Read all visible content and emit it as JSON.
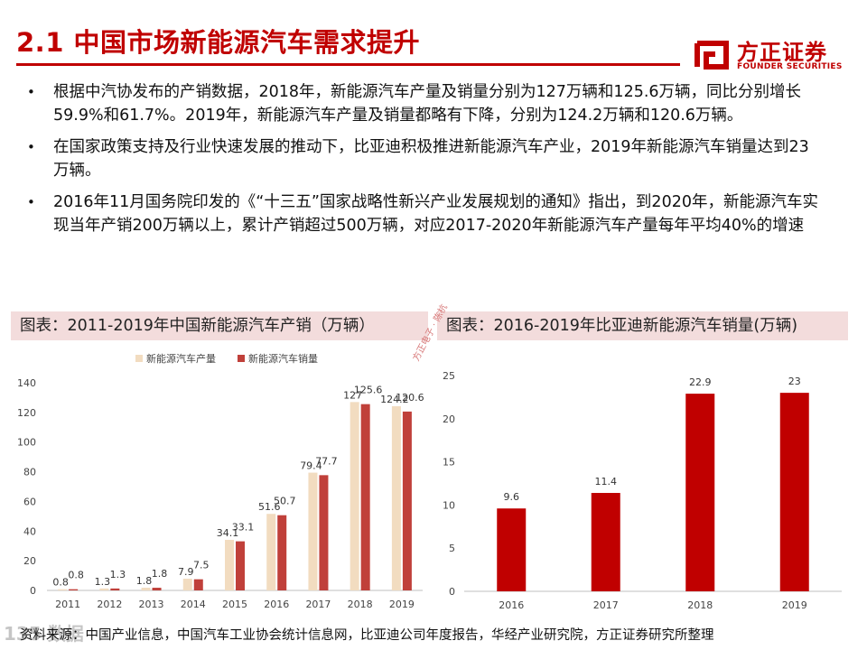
{
  "header": {
    "title": "2.1 中国市场新能源汽车需求提升",
    "logo_cn": "方正证券",
    "logo_en": "FOUNDER SECURITIES",
    "brand_color": "#c00000"
  },
  "bullets": [
    "根据中汽协发布的产销数据，2018年，新能源汽车产量及销量分别为127万辆和125.6万辆，同比分别增长59.9%和61.7%。2019年，新能源汽车产量及销量都略有下降，分别为124.2万辆和120.6万辆。",
    "在国家政策支持及行业快速发展的推动下，比亚迪积极推进新能源汽车产业，2019年新能源汽车销量达到23万辆。",
    "2016年11月国务院印发的《“十三五”国家战略性新兴产业发展规划的通知》指出，到2020年，新能源汽车实现当年产销200万辆以上，累计产销超过500万辆，对应2017-2020年新能源汽车产量每年平均40%的增速"
  ],
  "panels": {
    "left_title": "图表：2011-2019年中国新能源汽车产销（万辆）",
    "right_title": "图表：2016-2019年比亚迪新能源汽车销量(万辆)"
  },
  "stamp": "方正电子 · 陈杭",
  "source": "资料来源：中国产业信息，中国汽车工业协会统计信息网，比亚迪公司年度报告，华经产业研究院，方正证券研究所整理",
  "watermark": "135 数据",
  "chart_data": [
    {
      "type": "bar",
      "categories": [
        "2011",
        "2012",
        "2013",
        "2014",
        "2015",
        "2016",
        "2017",
        "2018",
        "2019"
      ],
      "series": [
        {
          "name": "新能源汽车产量",
          "values": [
            0.8,
            1.3,
            1.8,
            7.9,
            34.1,
            51.6,
            79.4,
            127,
            124.2
          ],
          "color": "#f2dcc0"
        },
        {
          "name": "新能源汽车销量",
          "values": [
            0.8,
            1.3,
            1.8,
            7.5,
            33.1,
            50.7,
            77.7,
            125.6,
            120.6
          ],
          "color": "#c0403a"
        }
      ],
      "yticks": [
        "0",
        "20",
        "40",
        "60",
        "80",
        "100",
        "120",
        "140"
      ],
      "ylim": [
        0,
        140
      ],
      "legend_position": "top",
      "grid": false
    },
    {
      "type": "bar",
      "categories": [
        "2016",
        "2017",
        "2018",
        "2019"
      ],
      "values": [
        9.6,
        11.4,
        22.9,
        23
      ],
      "color": "#c00000",
      "yticks": [
        "0",
        "5",
        "10",
        "15",
        "20",
        "25"
      ],
      "ylim": [
        0,
        25
      ],
      "grid": false
    }
  ]
}
